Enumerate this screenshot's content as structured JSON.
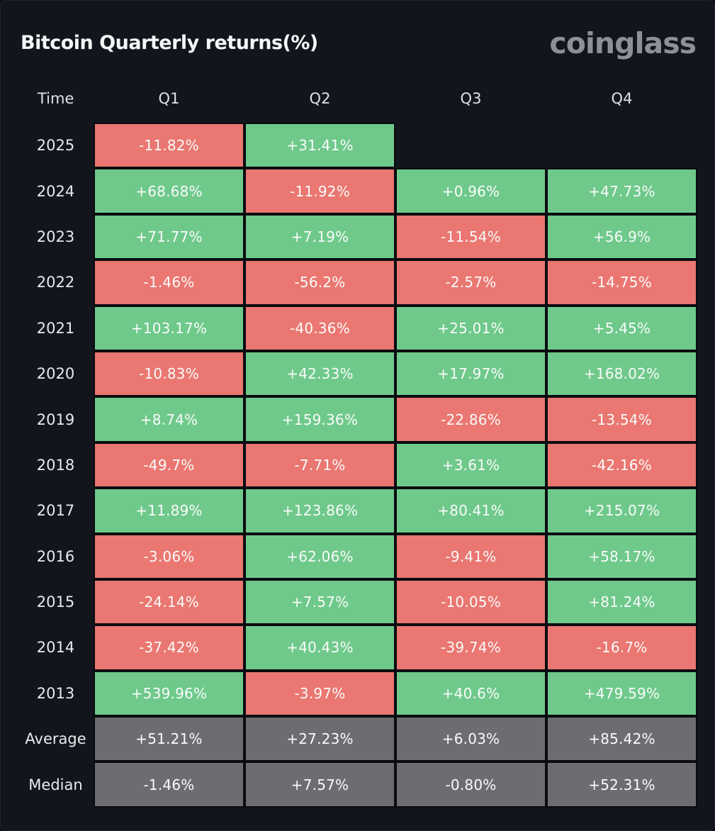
{
  "header": {
    "title": "Bitcoin Quarterly returns(%)",
    "logo": "coinglass"
  },
  "colors": {
    "positive": "#6FC98B",
    "negative": "#EA7771",
    "summary": "#6B6D70",
    "background": "#12151C",
    "grid": "#0A0C10",
    "title": "#F5F6F8",
    "logo": "#8D9197",
    "header_text": "#DFE2E6"
  },
  "table": {
    "columns": [
      "Time",
      "Q1",
      "Q2",
      "Q3",
      "Q4"
    ],
    "rows": [
      {
        "label": "2025",
        "cells": [
          {
            "text": "-11.82%",
            "type": "neg"
          },
          {
            "text": "+31.41%",
            "type": "pos"
          },
          {
            "text": "",
            "type": "empty"
          },
          {
            "text": "",
            "type": "empty"
          }
        ]
      },
      {
        "label": "2024",
        "cells": [
          {
            "text": "+68.68%",
            "type": "pos"
          },
          {
            "text": "-11.92%",
            "type": "neg"
          },
          {
            "text": "+0.96%",
            "type": "pos"
          },
          {
            "text": "+47.73%",
            "type": "pos"
          }
        ]
      },
      {
        "label": "2023",
        "cells": [
          {
            "text": "+71.77%",
            "type": "pos"
          },
          {
            "text": "+7.19%",
            "type": "pos"
          },
          {
            "text": "-11.54%",
            "type": "neg"
          },
          {
            "text": "+56.9%",
            "type": "pos"
          }
        ]
      },
      {
        "label": "2022",
        "cells": [
          {
            "text": "-1.46%",
            "type": "neg"
          },
          {
            "text": "-56.2%",
            "type": "neg"
          },
          {
            "text": "-2.57%",
            "type": "neg"
          },
          {
            "text": "-14.75%",
            "type": "neg"
          }
        ]
      },
      {
        "label": "2021",
        "cells": [
          {
            "text": "+103.17%",
            "type": "pos"
          },
          {
            "text": "-40.36%",
            "type": "neg"
          },
          {
            "text": "+25.01%",
            "type": "pos"
          },
          {
            "text": "+5.45%",
            "type": "pos"
          }
        ]
      },
      {
        "label": "2020",
        "cells": [
          {
            "text": "-10.83%",
            "type": "neg"
          },
          {
            "text": "+42.33%",
            "type": "pos"
          },
          {
            "text": "+17.97%",
            "type": "pos"
          },
          {
            "text": "+168.02%",
            "type": "pos"
          }
        ]
      },
      {
        "label": "2019",
        "cells": [
          {
            "text": "+8.74%",
            "type": "pos"
          },
          {
            "text": "+159.36%",
            "type": "pos"
          },
          {
            "text": "-22.86%",
            "type": "neg"
          },
          {
            "text": "-13.54%",
            "type": "neg"
          }
        ]
      },
      {
        "label": "2018",
        "cells": [
          {
            "text": "-49.7%",
            "type": "neg"
          },
          {
            "text": "-7.71%",
            "type": "neg"
          },
          {
            "text": "+3.61%",
            "type": "pos"
          },
          {
            "text": "-42.16%",
            "type": "neg"
          }
        ]
      },
      {
        "label": "2017",
        "cells": [
          {
            "text": "+11.89%",
            "type": "pos"
          },
          {
            "text": "+123.86%",
            "type": "pos"
          },
          {
            "text": "+80.41%",
            "type": "pos"
          },
          {
            "text": "+215.07%",
            "type": "pos"
          }
        ]
      },
      {
        "label": "2016",
        "cells": [
          {
            "text": "-3.06%",
            "type": "neg"
          },
          {
            "text": "+62.06%",
            "type": "pos"
          },
          {
            "text": "-9.41%",
            "type": "neg"
          },
          {
            "text": "+58.17%",
            "type": "pos"
          }
        ]
      },
      {
        "label": "2015",
        "cells": [
          {
            "text": "-24.14%",
            "type": "neg"
          },
          {
            "text": "+7.57%",
            "type": "pos"
          },
          {
            "text": "-10.05%",
            "type": "neg"
          },
          {
            "text": "+81.24%",
            "type": "pos"
          }
        ]
      },
      {
        "label": "2014",
        "cells": [
          {
            "text": "-37.42%",
            "type": "neg"
          },
          {
            "text": "+40.43%",
            "type": "pos"
          },
          {
            "text": "-39.74%",
            "type": "neg"
          },
          {
            "text": "-16.7%",
            "type": "neg"
          }
        ]
      },
      {
        "label": "2013",
        "cells": [
          {
            "text": "+539.96%",
            "type": "pos"
          },
          {
            "text": "-3.97%",
            "type": "neg"
          },
          {
            "text": "+40.6%",
            "type": "pos"
          },
          {
            "text": "+479.59%",
            "type": "pos"
          }
        ]
      },
      {
        "label": "Average",
        "cells": [
          {
            "text": "+51.21%",
            "type": "sum"
          },
          {
            "text": "+27.23%",
            "type": "sum"
          },
          {
            "text": "+6.03%",
            "type": "sum"
          },
          {
            "text": "+85.42%",
            "type": "sum"
          }
        ]
      },
      {
        "label": "Median",
        "cells": [
          {
            "text": "-1.46%",
            "type": "sum"
          },
          {
            "text": "+7.57%",
            "type": "sum"
          },
          {
            "text": "-0.80%",
            "type": "sum"
          },
          {
            "text": "+52.31%",
            "type": "sum"
          }
        ]
      }
    ]
  },
  "chart_data": {
    "type": "heatmap",
    "title": "Bitcoin Quarterly returns(%)",
    "categories": [
      "Q1",
      "Q2",
      "Q3",
      "Q4"
    ],
    "series": [
      {
        "name": "2025",
        "values": [
          -11.82,
          31.41,
          null,
          null
        ]
      },
      {
        "name": "2024",
        "values": [
          68.68,
          -11.92,
          0.96,
          47.73
        ]
      },
      {
        "name": "2023",
        "values": [
          71.77,
          7.19,
          -11.54,
          56.9
        ]
      },
      {
        "name": "2022",
        "values": [
          -1.46,
          -56.2,
          -2.57,
          -14.75
        ]
      },
      {
        "name": "2021",
        "values": [
          103.17,
          -40.36,
          25.01,
          5.45
        ]
      },
      {
        "name": "2020",
        "values": [
          -10.83,
          42.33,
          17.97,
          168.02
        ]
      },
      {
        "name": "2019",
        "values": [
          8.74,
          159.36,
          -22.86,
          -13.54
        ]
      },
      {
        "name": "2018",
        "values": [
          -49.7,
          -7.71,
          3.61,
          -42.16
        ]
      },
      {
        "name": "2017",
        "values": [
          11.89,
          123.86,
          80.41,
          215.07
        ]
      },
      {
        "name": "2016",
        "values": [
          -3.06,
          62.06,
          -9.41,
          58.17
        ]
      },
      {
        "name": "2015",
        "values": [
          -24.14,
          7.57,
          -10.05,
          81.24
        ]
      },
      {
        "name": "2014",
        "values": [
          -37.42,
          40.43,
          -39.74,
          -16.7
        ]
      },
      {
        "name": "2013",
        "values": [
          539.96,
          -3.97,
          40.6,
          479.59
        ]
      }
    ],
    "summary": {
      "average": [
        51.21,
        27.23,
        6.03,
        85.42
      ],
      "median": [
        -1.46,
        7.57,
        -0.8,
        52.31
      ]
    },
    "legend": "none",
    "color_coding": "positive=green, negative=red, summary=gray"
  }
}
